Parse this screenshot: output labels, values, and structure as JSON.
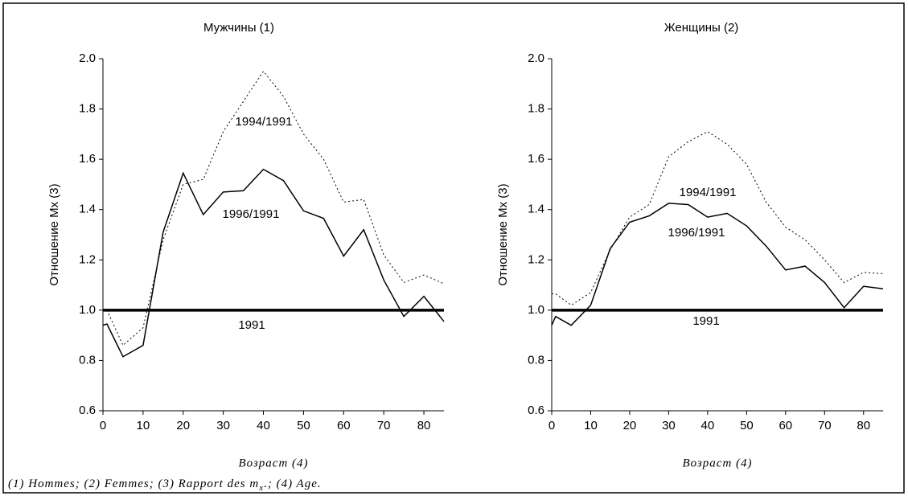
{
  "chart_data": [
    {
      "type": "line",
      "title": "Мужчины (1)",
      "xlabel": "Возраст (4)",
      "ylabel": "Отношение Mx (3)",
      "x": [
        0,
        1,
        5,
        10,
        15,
        20,
        25,
        30,
        35,
        40,
        45,
        50,
        55,
        60,
        65,
        70,
        75,
        80,
        85
      ],
      "xlim": [
        0,
        85
      ],
      "xticks": [
        0,
        10,
        20,
        30,
        40,
        50,
        60,
        70,
        80
      ],
      "ylim": [
        0.6,
        2.0
      ],
      "yticks": [
        0.6,
        0.8,
        {
          "value": 1.0,
          "label": "1.0"
        },
        1.2,
        1.4,
        1.6,
        1.8,
        {
          "value": 2.0,
          "label": "2.0"
        }
      ],
      "series": [
        {
          "name": "1994/1991",
          "color": "#000",
          "dash": "dotted",
          "values": [
            1.0,
            1.0,
            0.86,
            0.93,
            1.28,
            1.5,
            1.52,
            1.71,
            1.83,
            1.95,
            1.85,
            1.7,
            1.6,
            1.43,
            1.44,
            1.22,
            1.11,
            1.14,
            1.105
          ]
        },
        {
          "name": "1996/1991",
          "color": "#000",
          "dash": "solid",
          "values": [
            0.94,
            0.945,
            0.815,
            0.86,
            1.31,
            1.545,
            1.38,
            1.47,
            1.475,
            1.56,
            1.515,
            1.395,
            1.365,
            1.215,
            1.32,
            1.12,
            0.975,
            1.055,
            0.955
          ]
        },
        {
          "name": "1991",
          "color": "#000",
          "dash": "thick",
          "values": [
            1,
            1,
            1,
            1,
            1,
            1,
            1,
            1,
            1,
            1,
            1,
            1,
            1,
            1,
            1,
            1,
            1,
            1,
            1
          ]
        }
      ]
    },
    {
      "type": "line",
      "title": "Женщины (2)",
      "xlabel": "Возраст (4)",
      "ylabel": "Отношение Mx (3)",
      "x": [
        0,
        1,
        5,
        10,
        15,
        20,
        25,
        30,
        35,
        40,
        45,
        50,
        55,
        60,
        65,
        70,
        75,
        80,
        85
      ],
      "xlim": [
        0,
        85
      ],
      "xticks": [
        0,
        10,
        20,
        30,
        40,
        50,
        60,
        70,
        80
      ],
      "ylim": [
        0.6,
        2.0
      ],
      "yticks": [
        0.6,
        0.8,
        {
          "value": 1.0,
          "label": "1.0"
        },
        1.2,
        1.4,
        1.6,
        1.8,
        {
          "value": 2.0,
          "label": "2.0"
        }
      ],
      "series": [
        {
          "name": "1994/1991",
          "color": "#000",
          "dash": "dotted",
          "values": [
            1.065,
            1.065,
            1.02,
            1.07,
            1.24,
            1.37,
            1.42,
            1.61,
            1.67,
            1.71,
            1.66,
            1.58,
            1.43,
            1.33,
            1.28,
            1.2,
            1.11,
            1.15,
            1.145
          ]
        },
        {
          "name": "1996/1991",
          "color": "#000",
          "dash": "solid",
          "values": [
            0.94,
            0.975,
            0.94,
            1.02,
            1.245,
            1.35,
            1.375,
            1.425,
            1.42,
            1.37,
            1.385,
            1.335,
            1.255,
            1.16,
            1.175,
            1.11,
            1.01,
            1.095,
            1.085
          ]
        },
        {
          "name": "1991",
          "color": "#000",
          "dash": "thick",
          "values": [
            1,
            1,
            1,
            1,
            1,
            1,
            1,
            1,
            1,
            1,
            1,
            1,
            1,
            1,
            1,
            1,
            1,
            1,
            1
          ]
        }
      ]
    }
  ],
  "footnote": {
    "before": "(1) Hommes; (2) Femmes; (3) Rapport des m",
    "sub": "x",
    "after": ".; (4) Age."
  }
}
